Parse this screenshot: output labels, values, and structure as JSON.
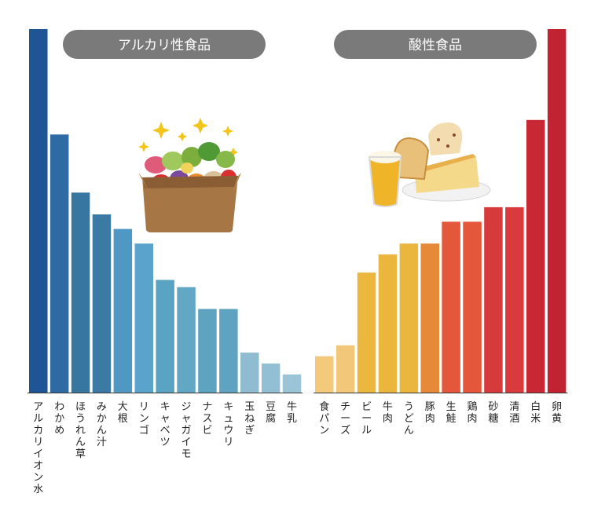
{
  "colors": {
    "background": "#ffffff",
    "pill": "#7a7a7a",
    "pill_text": "#ffffff",
    "label": "#222222",
    "axis": "#333333"
  },
  "chart_data": [
    {
      "type": "bar",
      "title": "アルカリ性食品",
      "categories": [
        "アルカリイオン水",
        "わかめ",
        "ほうれん草",
        "みかん汁",
        "大根",
        "リンゴ",
        "キャベツ",
        "ジャガイモ",
        "ナスビ",
        "キュウリ",
        "玉ねぎ",
        "豆腐",
        "牛乳"
      ],
      "values": [
        100,
        71,
        55,
        49,
        45,
        41,
        31,
        29,
        23,
        23,
        11,
        8,
        5
      ],
      "bar_colors": [
        "#1f5595",
        "#2e6aa3",
        "#36769f",
        "#3a7aa5",
        "#4f98c3",
        "#5aa3cc",
        "#5aa3c2",
        "#62a8c4",
        "#5ea3bf",
        "#5ea3bf",
        "#8fbcd1",
        "#92bfd3",
        "#9bc4d6"
      ],
      "ylim": [
        0,
        100
      ],
      "grid": false,
      "illustration": "vegetable-basket"
    },
    {
      "type": "bar",
      "title": "酸性食品",
      "categories": [
        "食パン",
        "チーズ",
        "ビール",
        "牛肉",
        "うどん",
        "豚肉",
        "生鮭",
        "鶏肉",
        "砂糖",
        "清酒",
        "白米",
        "卵黄"
      ],
      "values": [
        10,
        13,
        33,
        38,
        41,
        41,
        47,
        47,
        51,
        51,
        75,
        100
      ],
      "bar_colors": [
        "#f3c97b",
        "#f2c779",
        "#ecb73f",
        "#ebb63d",
        "#ebb63d",
        "#e68a3a",
        "#e3573a",
        "#e4573a",
        "#d73a3a",
        "#d93a3b",
        "#c82734",
        "#c12332"
      ],
      "ylim": [
        0,
        100
      ],
      "grid": false,
      "illustration": "bread-cheese-beer"
    }
  ]
}
